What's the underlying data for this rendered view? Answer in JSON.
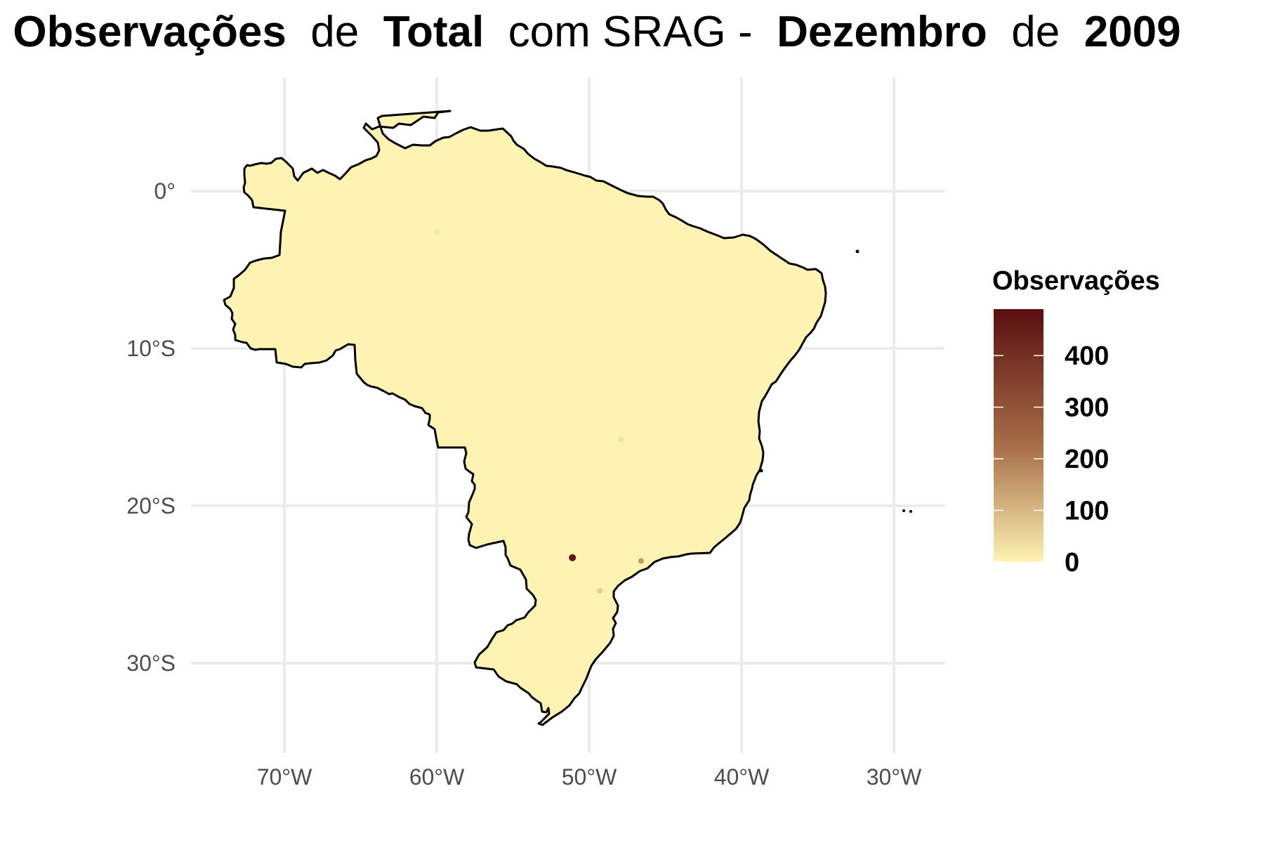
{
  "title": {
    "prefix": "Observações",
    "word_de_1": "de",
    "variable": "Total",
    "middle": "com SRAG -",
    "month": "Dezembro",
    "word_de_2": "de",
    "year": "2009"
  },
  "map": {
    "region": "Brazil",
    "fill_color": "#fef3b3",
    "border_color": "#000000",
    "grid_color": "#ebebeb",
    "x_ticks": [
      {
        "lon": -70,
        "label": "70°W"
      },
      {
        "lon": -60,
        "label": "60°W"
      },
      {
        "lon": -50,
        "label": "50°W"
      },
      {
        "lon": -40,
        "label": "40°W"
      },
      {
        "lon": -30,
        "label": "30°W"
      }
    ],
    "y_ticks": [
      {
        "lat": 0,
        "label": "0°"
      },
      {
        "lat": -10,
        "label": "10°S"
      },
      {
        "lat": -20,
        "label": "20°S"
      },
      {
        "lat": -30,
        "label": "30°S"
      }
    ],
    "hotspots": [
      {
        "lon": -51.1,
        "lat": -23.3,
        "value": 470
      },
      {
        "lon": -46.6,
        "lat": -23.5,
        "value": 150
      },
      {
        "lon": -49.3,
        "lat": -25.4,
        "value": 60
      },
      {
        "lon": -47.9,
        "lat": -15.8,
        "value": 30
      },
      {
        "lon": -60.0,
        "lat": -2.6,
        "value": 20
      }
    ]
  },
  "legend": {
    "title": "Observações",
    "min": 0,
    "max": 490,
    "color_low": "#fef3b3",
    "color_mid": "#a8704a",
    "color_high": "#5a0f0f",
    "ticks": [
      {
        "value": 0,
        "label": "0"
      },
      {
        "value": 100,
        "label": "100"
      },
      {
        "value": 200,
        "label": "200"
      },
      {
        "value": 300,
        "label": "300"
      },
      {
        "value": 400,
        "label": "400"
      }
    ]
  }
}
